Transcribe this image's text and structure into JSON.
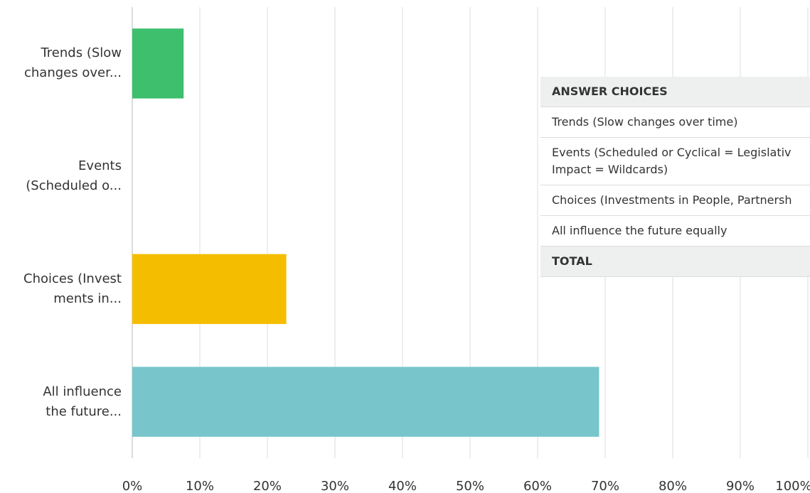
{
  "chart_data": {
    "type": "hbar",
    "categories": [
      "Trends (Slow\nchanges over...",
      "Events\n(Scheduled o...",
      "Choices (Invest\nments in...",
      "All influence\nthe future..."
    ],
    "values": [
      7.6,
      0,
      22.8,
      69.1
    ],
    "colors": [
      "#3dbf6e",
      "#3dbf6e",
      "#f5bd00",
      "#78c6cc"
    ],
    "xlim": [
      0,
      100
    ],
    "xticks": [
      {
        "value": 0,
        "label": "0%"
      },
      {
        "value": 10,
        "label": "10%"
      },
      {
        "value": 20,
        "label": "20%"
      },
      {
        "value": 30,
        "label": "30%"
      },
      {
        "value": 40,
        "label": "40%"
      },
      {
        "value": 50,
        "label": "50%"
      },
      {
        "value": 60,
        "label": "60%"
      },
      {
        "value": 70,
        "label": "70%"
      },
      {
        "value": 80,
        "label": "80%"
      },
      {
        "value": 90,
        "label": "90%"
      },
      {
        "value": 100,
        "label": "100%"
      }
    ],
    "grid": true
  },
  "table": {
    "header": "ANSWER CHOICES",
    "rows": [
      "Trends (Slow changes over time)",
      "Events (Scheduled or Cyclical = Legislativ\nImpact = Wildcards)",
      "Choices (Investments in People, Partnersh",
      "All influence the future equally"
    ],
    "footer": "TOTAL"
  }
}
